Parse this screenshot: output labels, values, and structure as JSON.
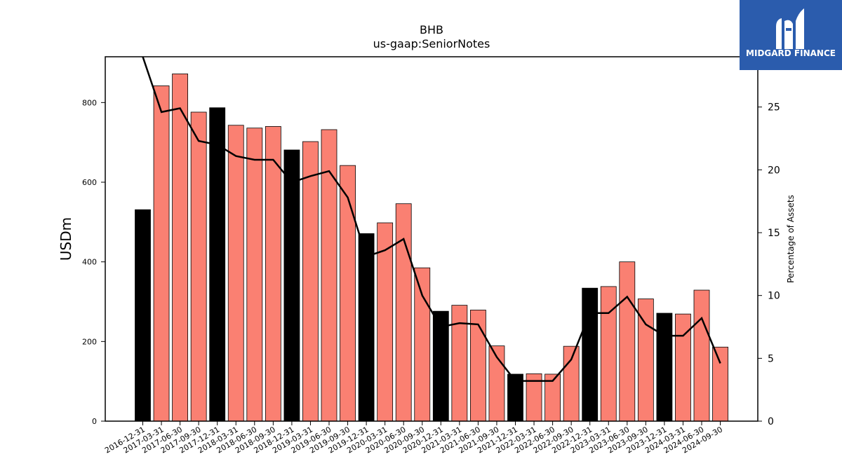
{
  "chart_data": {
    "type": "bar",
    "title": "BHB",
    "subtitle": "us-gaap:SeniorNotes",
    "ylabel": "USDm",
    "y2label": "Percentage of Assets",
    "ylim": [
      0,
      915
    ],
    "y2lim": [
      0,
      29
    ],
    "yticks": [
      0,
      200,
      400,
      600,
      800
    ],
    "y2ticks": [
      0,
      5,
      10,
      15,
      20,
      25
    ],
    "categories": [
      "2016-12-31",
      "2017-03-31",
      "2017-06-30",
      "2017-09-30",
      "2017-12-31",
      "2018-03-31",
      "2018-06-30",
      "2018-09-30",
      "2018-12-31",
      "2019-03-31",
      "2019-06-30",
      "2019-09-30",
      "2019-12-31",
      "2020-03-31",
      "2020-06-30",
      "2020-09-30",
      "2020-12-31",
      "2021-03-31",
      "2021-06-30",
      "2021-09-30",
      "2021-12-31",
      "2022-03-31",
      "2022-06-30",
      "2022-09-30",
      "2022-12-31",
      "2023-03-31",
      "2023-06-30",
      "2023-09-30",
      "2023-12-31",
      "2024-03-31",
      "2024-06-30",
      "2024-09-30"
    ],
    "series": [
      {
        "type": "bar",
        "values": [
          531,
          842,
          872,
          776,
          787,
          743,
          736,
          740,
          681,
          702,
          732,
          642,
          471,
          498,
          546,
          385,
          276,
          291,
          279,
          189,
          118,
          119,
          118,
          188,
          334,
          338,
          400,
          307,
          271,
          269,
          329,
          186
        ],
        "colors": [
          "#000000",
          "#fa8072",
          "#fa8072",
          "#fa8072",
          "#000000",
          "#fa8072",
          "#fa8072",
          "#fa8072",
          "#000000",
          "#fa8072",
          "#fa8072",
          "#fa8072",
          "#000000",
          "#fa8072",
          "#fa8072",
          "#fa8072",
          "#000000",
          "#fa8072",
          "#fa8072",
          "#fa8072",
          "#000000",
          "#fa8072",
          "#fa8072",
          "#fa8072",
          "#000000",
          "#fa8072",
          "#fa8072",
          "#fa8072",
          "#000000",
          "#fa8072",
          "#fa8072",
          "#fa8072"
        ]
      },
      {
        "type": "line",
        "axis": "right",
        "color": "#000000",
        "values": [
          29.6,
          24.6,
          24.9,
          22.3,
          22.0,
          21.1,
          20.8,
          20.8,
          19.0,
          19.5,
          19.9,
          17.8,
          13.1,
          13.6,
          14.5,
          10.0,
          7.5,
          7.8,
          7.7,
          5.1,
          3.2,
          3.2,
          3.2,
          4.9,
          8.6,
          8.6,
          9.9,
          7.7,
          6.8,
          6.8,
          8.2,
          4.6
        ]
      }
    ],
    "bar_edge_color": "#000000"
  },
  "logo": {
    "text": "MIDGARD FINANCE",
    "background": "#2b5cad"
  }
}
